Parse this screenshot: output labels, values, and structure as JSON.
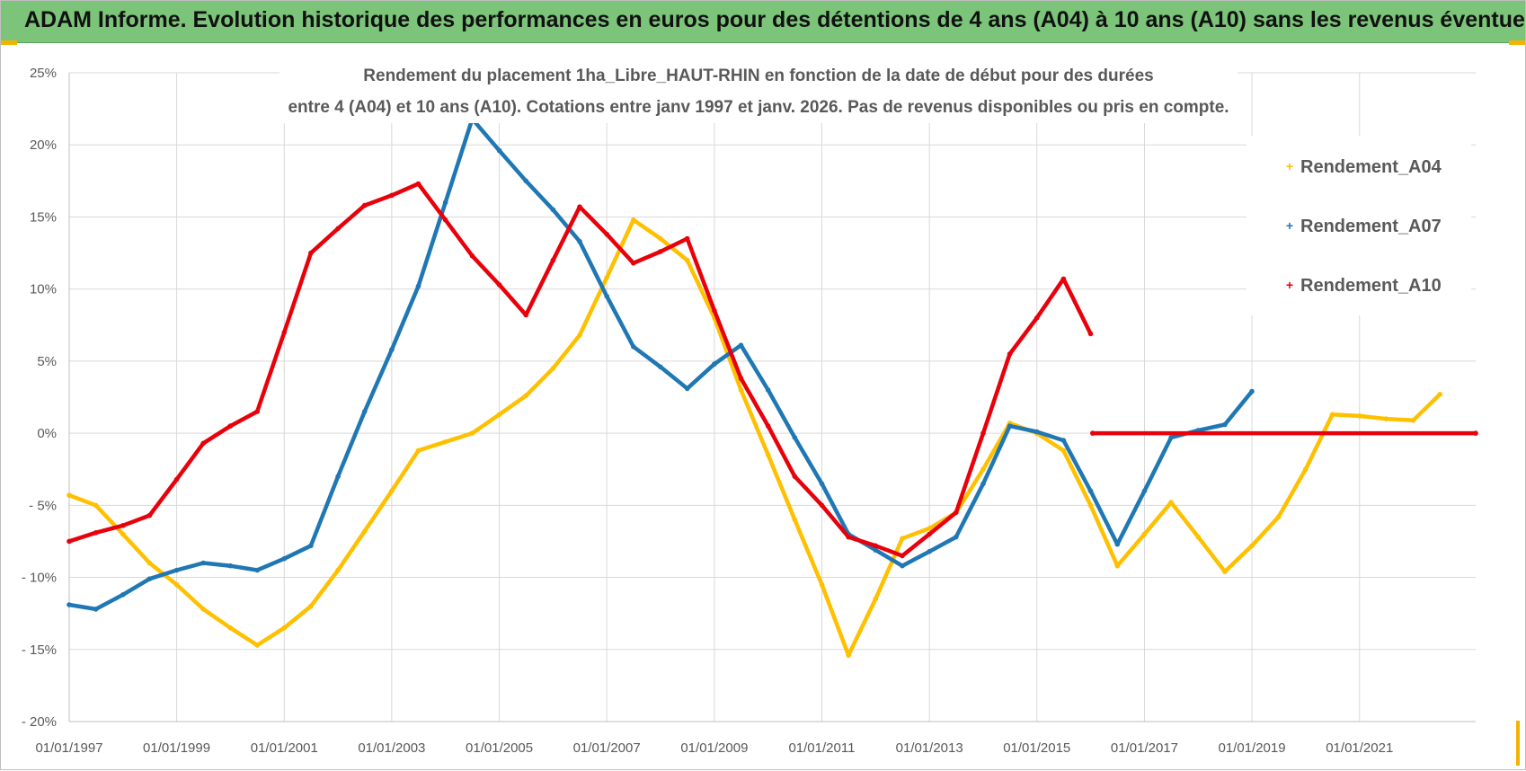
{
  "header": {
    "title": "ADAM Informe. Evolution historique des performances en euros pour des détentions de 4 ans (A04) à 10 ans (A10) sans les revenus éventuels"
  },
  "colors": {
    "header_bg": "#7cc47a",
    "corner_accent": "#f2b400",
    "gridline": "#d9d9d9",
    "axis_text": "#595959"
  },
  "chart_data": {
    "type": "line",
    "title_line1": "Rendement du placement 1ha_Libre_HAUT-RHIN en fonction de la date de début pour des durées",
    "title_line2": "entre 4 (A04) et 10 ans (A10).  Cotations entre janv 1997 et janv. 2026. Pas de revenus disponibles ou pris en compte.",
    "xlabel": "",
    "ylabel": "",
    "x_range": [
      "1997-01-01",
      "2023-03-01"
    ],
    "x_tick_labels": [
      "01/01/1997",
      "01/01/1999",
      "01/01/2001",
      "01/01/2003",
      "01/01/2005",
      "01/01/2007",
      "01/01/2009",
      "01/01/2011",
      "01/01/2013",
      "01/01/2015",
      "01/01/2017",
      "01/01/2019",
      "01/01/2021"
    ],
    "ylim": [
      -0.2,
      0.25
    ],
    "y_ticks": [
      0.25,
      0.2,
      0.15,
      0.1,
      0.05,
      0,
      -0.05,
      -0.1,
      -0.15,
      -0.2
    ],
    "y_tick_labels": [
      "25%",
      "20%",
      "15%",
      "10%",
      "5%",
      "0%",
      "- 5%",
      "- 10%",
      "- 15%",
      "- 20%"
    ],
    "grid": true,
    "legend_position": "top-right",
    "series": [
      {
        "name": "Rendement_A04",
        "color": "#ffc000",
        "points": [
          [
            "1997-01-01",
            -0.043
          ],
          [
            "1997-07-01",
            -0.05
          ],
          [
            "1998-01-01",
            -0.07
          ],
          [
            "1998-07-01",
            -0.09
          ],
          [
            "1999-01-01",
            -0.105
          ],
          [
            "1999-07-01",
            -0.122
          ],
          [
            "2000-01-01",
            -0.135
          ],
          [
            "2000-07-01",
            -0.147
          ],
          [
            "2001-01-01",
            -0.135
          ],
          [
            "2001-07-01",
            -0.12
          ],
          [
            "2002-01-01",
            -0.095
          ],
          [
            "2002-07-01",
            -0.068
          ],
          [
            "2003-01-01",
            -0.04
          ],
          [
            "2003-07-01",
            -0.012
          ],
          [
            "2004-01-01",
            -0.006
          ],
          [
            "2004-07-01",
            0.0
          ],
          [
            "2005-01-01",
            0.013
          ],
          [
            "2005-07-01",
            0.026
          ],
          [
            "2006-01-01",
            0.045
          ],
          [
            "2006-07-01",
            0.068
          ],
          [
            "2007-01-01",
            0.108
          ],
          [
            "2007-07-01",
            0.148
          ],
          [
            "2008-01-01",
            0.135
          ],
          [
            "2008-07-01",
            0.12
          ],
          [
            "2009-01-01",
            0.08
          ],
          [
            "2009-07-01",
            0.03
          ],
          [
            "2010-01-01",
            -0.015
          ],
          [
            "2010-07-01",
            -0.06
          ],
          [
            "2011-01-01",
            -0.105
          ],
          [
            "2011-07-01",
            -0.154
          ],
          [
            "2012-01-01",
            -0.115
          ],
          [
            "2012-07-01",
            -0.073
          ],
          [
            "2013-01-01",
            -0.066
          ],
          [
            "2013-07-01",
            -0.055
          ],
          [
            "2014-01-01",
            -0.025
          ],
          [
            "2014-07-01",
            0.007
          ],
          [
            "2015-01-01",
            0.0
          ],
          [
            "2015-07-01",
            -0.012
          ],
          [
            "2016-01-01",
            -0.05
          ],
          [
            "2016-07-01",
            -0.092
          ],
          [
            "2017-01-01",
            -0.07
          ],
          [
            "2017-07-01",
            -0.048
          ],
          [
            "2018-01-01",
            -0.072
          ],
          [
            "2018-07-01",
            -0.096
          ],
          [
            "2019-01-01",
            -0.078
          ],
          [
            "2019-07-01",
            -0.058
          ],
          [
            "2020-01-01",
            -0.025
          ],
          [
            "2020-07-01",
            0.013
          ],
          [
            "2021-01-01",
            0.012
          ],
          [
            "2021-07-01",
            0.01
          ],
          [
            "2022-01-01",
            0.009
          ],
          [
            "2022-07-01",
            0.027
          ]
        ]
      },
      {
        "name": "Rendement_A07",
        "color": "#1f77b4",
        "points": [
          [
            "1997-01-01",
            -0.119
          ],
          [
            "1997-07-01",
            -0.122
          ],
          [
            "1998-01-01",
            -0.112
          ],
          [
            "1998-07-01",
            -0.101
          ],
          [
            "1999-01-01",
            -0.095
          ],
          [
            "1999-07-01",
            -0.09
          ],
          [
            "2000-01-01",
            -0.092
          ],
          [
            "2000-07-01",
            -0.095
          ],
          [
            "2001-01-01",
            -0.087
          ],
          [
            "2001-07-01",
            -0.078
          ],
          [
            "2002-01-01",
            -0.03
          ],
          [
            "2002-07-01",
            0.015
          ],
          [
            "2003-01-01",
            0.058
          ],
          [
            "2003-07-01",
            0.102
          ],
          [
            "2004-01-01",
            0.16
          ],
          [
            "2004-07-01",
            0.218
          ],
          [
            "2005-01-01",
            0.196
          ],
          [
            "2005-07-01",
            0.175
          ],
          [
            "2006-01-01",
            0.155
          ],
          [
            "2006-07-01",
            0.133
          ],
          [
            "2007-01-01",
            0.095
          ],
          [
            "2007-07-01",
            0.06
          ],
          [
            "2008-01-01",
            0.046
          ],
          [
            "2008-07-01",
            0.031
          ],
          [
            "2009-01-01",
            0.048
          ],
          [
            "2009-07-01",
            0.061
          ],
          [
            "2010-01-01",
            0.03
          ],
          [
            "2010-07-01",
            -0.003
          ],
          [
            "2011-01-01",
            -0.035
          ],
          [
            "2011-07-01",
            -0.07
          ],
          [
            "2012-01-01",
            -0.081
          ],
          [
            "2012-07-01",
            -0.092
          ],
          [
            "2013-01-01",
            -0.082
          ],
          [
            "2013-07-01",
            -0.072
          ],
          [
            "2014-01-01",
            -0.035
          ],
          [
            "2014-07-01",
            0.005
          ],
          [
            "2015-01-01",
            0.001
          ],
          [
            "2015-07-01",
            -0.005
          ],
          [
            "2016-01-01",
            -0.04
          ],
          [
            "2016-07-01",
            -0.077
          ],
          [
            "2017-01-01",
            -0.04
          ],
          [
            "2017-07-01",
            -0.003
          ],
          [
            "2018-01-01",
            0.002
          ],
          [
            "2018-07-01",
            0.006
          ],
          [
            "2019-01-01",
            0.029
          ]
        ]
      },
      {
        "name": "Rendement_A10",
        "color": "#e8000b",
        "points": [
          [
            "1997-01-01",
            -0.075
          ],
          [
            "1997-07-01",
            -0.069
          ],
          [
            "1998-01-01",
            -0.064
          ],
          [
            "1998-07-01",
            -0.057
          ],
          [
            "1999-01-01",
            -0.032
          ],
          [
            "1999-07-01",
            -0.007
          ],
          [
            "2000-01-01",
            0.005
          ],
          [
            "2000-07-01",
            0.015
          ],
          [
            "2001-01-01",
            0.07
          ],
          [
            "2001-07-01",
            0.125
          ],
          [
            "2002-01-01",
            0.142
          ],
          [
            "2002-07-01",
            0.158
          ],
          [
            "2003-01-01",
            0.165
          ],
          [
            "2003-07-01",
            0.173
          ],
          [
            "2004-01-01",
            0.148
          ],
          [
            "2004-07-01",
            0.123
          ],
          [
            "2005-01-01",
            0.103
          ],
          [
            "2005-07-01",
            0.082
          ],
          [
            "2006-01-01",
            0.12
          ],
          [
            "2006-07-01",
            0.157
          ],
          [
            "2007-01-01",
            0.138
          ],
          [
            "2007-07-01",
            0.118
          ],
          [
            "2008-01-01",
            0.126
          ],
          [
            "2008-07-01",
            0.135
          ],
          [
            "2009-01-01",
            0.085
          ],
          [
            "2009-07-01",
            0.038
          ],
          [
            "2010-01-01",
            0.005
          ],
          [
            "2010-07-01",
            -0.03
          ],
          [
            "2011-01-01",
            -0.05
          ],
          [
            "2011-07-01",
            -0.072
          ],
          [
            "2012-01-01",
            -0.078
          ],
          [
            "2012-07-01",
            -0.085
          ],
          [
            "2013-01-01",
            -0.07
          ],
          [
            "2013-07-01",
            -0.055
          ],
          [
            "2014-01-01",
            0.0
          ],
          [
            "2014-07-01",
            0.055
          ],
          [
            "2015-01-01",
            0.08
          ],
          [
            "2015-07-01",
            0.107
          ],
          [
            "2016-01-01",
            0.069
          ],
          [
            "2016-01-15",
            null
          ],
          [
            "2016-01-15",
            0.0
          ],
          [
            "2023-03-01",
            0.0
          ]
        ]
      }
    ]
  }
}
